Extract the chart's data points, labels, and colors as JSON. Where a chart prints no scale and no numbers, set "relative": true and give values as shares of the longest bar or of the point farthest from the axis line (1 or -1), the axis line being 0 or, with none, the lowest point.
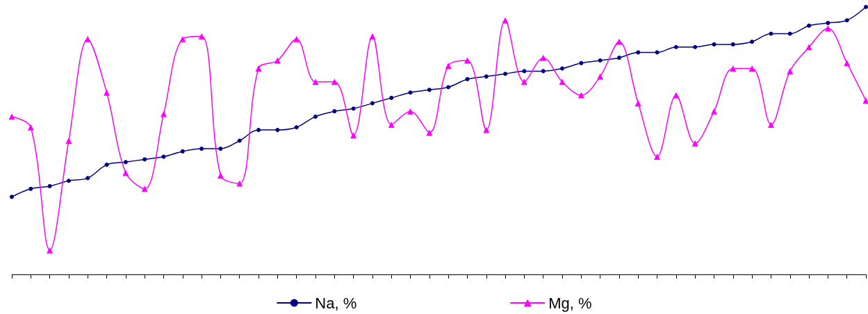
{
  "chart_data": {
    "type": "line",
    "relative": true,
    "grid": false,
    "legend": "bottom",
    "categories": [
      null,
      null,
      null,
      null,
      null,
      null,
      null,
      null,
      null,
      null,
      null,
      null,
      null,
      null,
      null,
      null,
      null,
      null,
      null,
      null,
      null,
      null,
      null,
      null,
      null,
      null,
      null,
      null,
      null,
      null,
      null,
      null,
      null,
      null,
      null,
      null,
      null,
      null,
      null,
      null,
      null,
      null,
      null,
      null,
      null,
      null
    ],
    "series": [
      {
        "name": "Na, %",
        "color": "#000080",
        "marker": "circle",
        "values": [
          0.29,
          0.32,
          0.33,
          0.35,
          0.36,
          0.41,
          0.42,
          0.43,
          0.44,
          0.46,
          0.47,
          0.47,
          0.5,
          0.54,
          0.54,
          0.55,
          0.59,
          0.61,
          0.62,
          0.64,
          0.66,
          0.68,
          0.69,
          0.7,
          0.73,
          0.74,
          0.75,
          0.76,
          0.76,
          0.77,
          0.79,
          0.8,
          0.81,
          0.83,
          0.83,
          0.85,
          0.85,
          0.86,
          0.86,
          0.87,
          0.9,
          0.9,
          0.93,
          0.94,
          0.95,
          1
        ]
      },
      {
        "name": "Mg, %",
        "color": "#ff00ff",
        "marker": "triangle",
        "values": [
          0.59,
          0.55,
          0.09,
          0.5,
          0.88,
          0.68,
          0.38,
          0.32,
          0.6,
          0.88,
          0.89,
          0.37,
          0.34,
          0.77,
          0.8,
          0.88,
          0.72,
          0.72,
          0.52,
          0.89,
          0.56,
          0.61,
          0.53,
          0.78,
          0.8,
          0.54,
          0.95,
          0.72,
          0.81,
          0.72,
          0.67,
          0.74,
          0.87,
          0.64,
          0.44,
          0.67,
          0.49,
          0.61,
          0.77,
          0.77,
          0.56,
          0.76,
          0.85,
          0.92,
          0.79,
          0.65
        ]
      }
    ]
  }
}
